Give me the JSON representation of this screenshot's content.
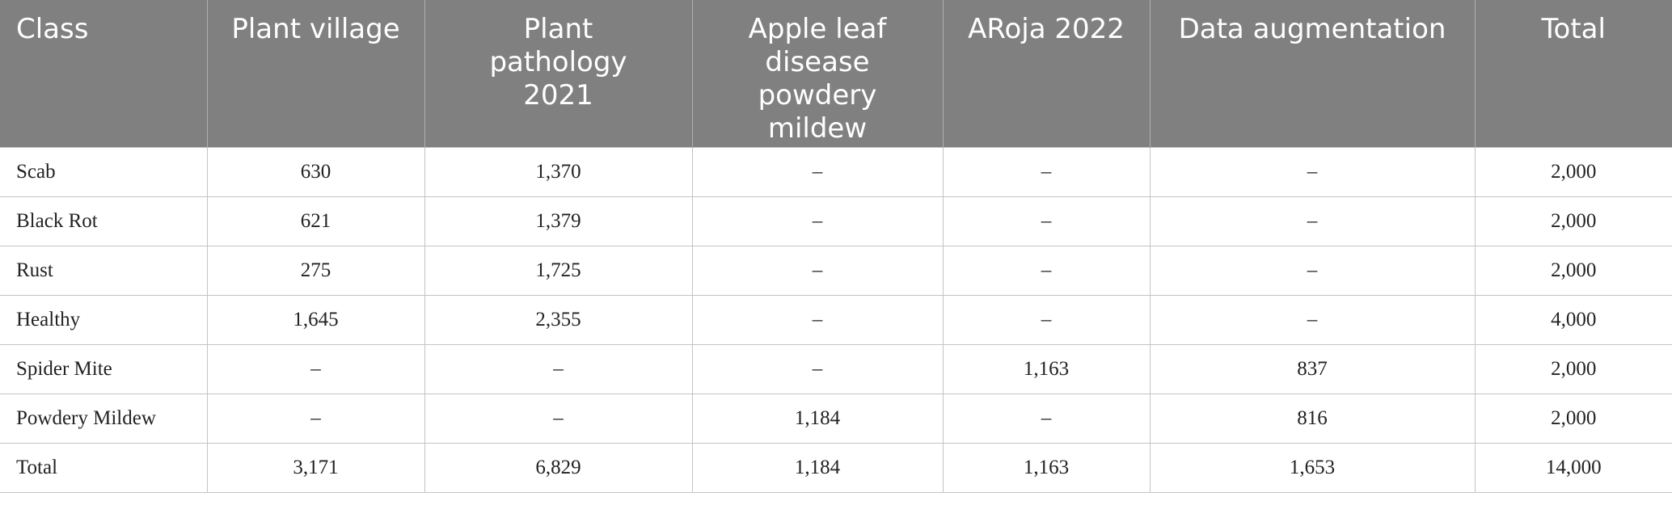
{
  "table": {
    "headers": [
      "Class",
      "Plant village",
      "Plant pathology 2021",
      "Apple leaf disease powdery mildew",
      "ARoja 2022",
      "Data augmentation",
      "Total"
    ],
    "rows": [
      [
        "Scab",
        "630",
        "1,370",
        "–",
        "–",
        "–",
        "2,000"
      ],
      [
        "Black Rot",
        "621",
        "1,379",
        "–",
        "–",
        "–",
        "2,000"
      ],
      [
        "Rust",
        "275",
        "1,725",
        "–",
        "–",
        "–",
        "2,000"
      ],
      [
        "Healthy",
        "1,645",
        "2,355",
        "–",
        "–",
        "–",
        "4,000"
      ],
      [
        "Spider Mite",
        "–",
        "–",
        "–",
        "1,163",
        "837",
        "2,000"
      ],
      [
        "Powdery Mildew",
        "–",
        "–",
        "1,184",
        "–",
        "816",
        "2,000"
      ],
      [
        "Total",
        "3,171",
        "6,829",
        "1,184",
        "1,163",
        "1,653",
        "14,000"
      ]
    ]
  }
}
